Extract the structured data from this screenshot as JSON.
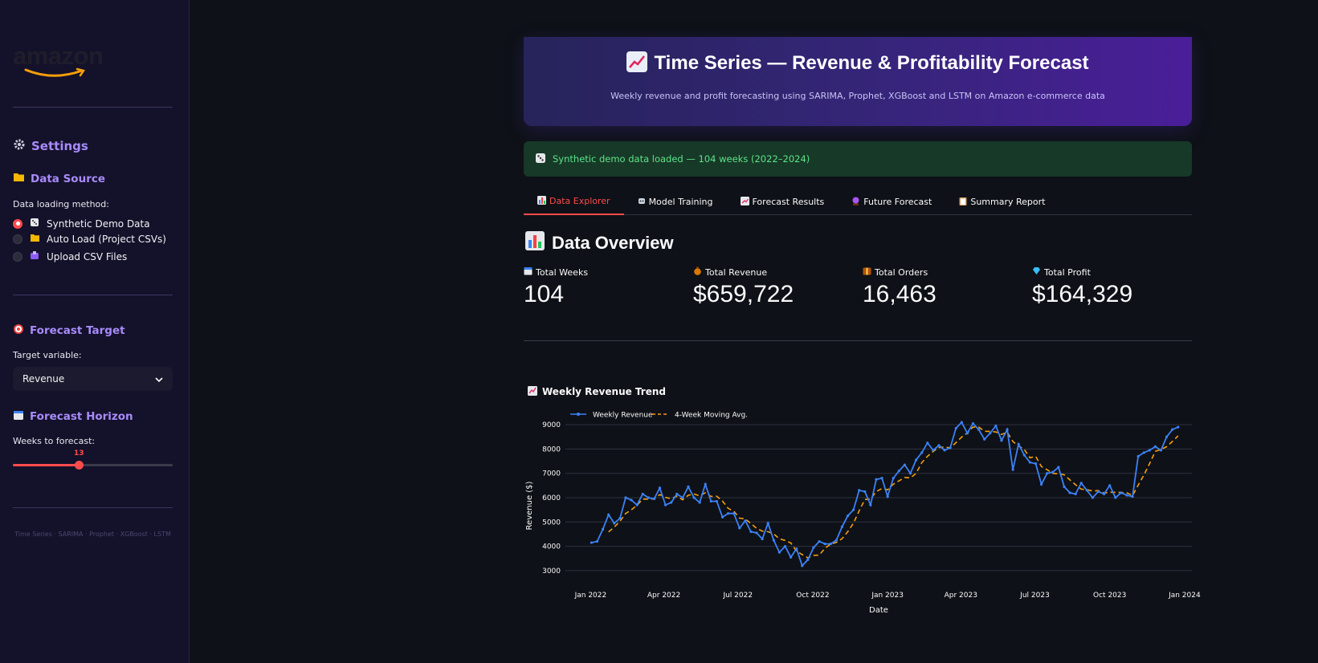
{
  "sidebar": {
    "logo_text": "amazon",
    "settings_heading": "Settings",
    "data_source_heading": "Data Source",
    "data_loading_label": "Data loading method:",
    "radio_options": [
      {
        "label": "Synthetic Demo Data",
        "icon": "dice-icon",
        "selected": true
      },
      {
        "label": "Auto Load (Project CSVs)",
        "icon": "folder-icon",
        "selected": false
      },
      {
        "label": "Upload CSV Files",
        "icon": "upload-icon",
        "selected": false
      }
    ],
    "forecast_target_heading": "Forecast Target",
    "target_variable_label": "Target variable:",
    "target_variable_value": "Revenue",
    "forecast_horizon_heading": "Forecast Horizon",
    "weeks_label": "Weeks to forecast:",
    "weeks_value": "13",
    "weeks_fraction": 0.41,
    "footer": "Time Series · SARIMA · Prophet · XGBoost · LSTM"
  },
  "hero": {
    "title": "Time Series — Revenue & Profitability Forecast",
    "subtitle": "Weekly revenue and profit forecasting using SARIMA, Prophet, XGBoost and LSTM on Amazon e-commerce data"
  },
  "alert": {
    "text": "Synthetic demo data loaded — 104 weeks (2022–2024)"
  },
  "tabs": [
    {
      "label": "Data Explorer",
      "active": true
    },
    {
      "label": "Model Training",
      "active": false
    },
    {
      "label": "Forecast Results",
      "active": false
    },
    {
      "label": "Future Forecast",
      "active": false
    },
    {
      "label": "Summary Report",
      "active": false
    }
  ],
  "overview": {
    "title": "Data Overview"
  },
  "metrics": [
    {
      "label": "Total Weeks",
      "value": "104"
    },
    {
      "label": "Total Revenue",
      "value": "$659,722"
    },
    {
      "label": "Total Orders",
      "value": "16,463"
    },
    {
      "label": "Total Profit",
      "value": "$164,329"
    }
  ],
  "colors": {
    "accent": "#ff4b4b",
    "purple": "#a78bfa",
    "revenue_line": "#3b82f6",
    "ma_line": "#f59e0b"
  },
  "chart_data": {
    "type": "line",
    "title": "Weekly Revenue Trend",
    "xlabel": "Date",
    "ylabel": "Revenue ($)",
    "ylim": [
      2700,
      9300
    ],
    "xlim": [
      "2021-12-01",
      "2024-01-10"
    ],
    "yticks": [
      3000,
      4000,
      5000,
      6000,
      7000,
      8000,
      9000
    ],
    "xticks": [
      {
        "date": "2022-01-01",
        "label": "Jan 2022"
      },
      {
        "date": "2022-04-01",
        "label": "Apr 2022"
      },
      {
        "date": "2022-07-01",
        "label": "Jul 2022"
      },
      {
        "date": "2022-10-01",
        "label": "Oct 2022"
      },
      {
        "date": "2023-01-01",
        "label": "Jan 2023"
      },
      {
        "date": "2023-04-01",
        "label": "Apr 2023"
      },
      {
        "date": "2023-07-01",
        "label": "Jul 2023"
      },
      {
        "date": "2023-10-01",
        "label": "Oct 2023"
      },
      {
        "date": "2024-01-01",
        "label": "Jan 2024"
      }
    ],
    "grid": true,
    "legend_position": "top-left",
    "x": [
      "2022-01-02",
      "2022-01-09",
      "2022-01-16",
      "2022-01-23",
      "2022-01-30",
      "2022-02-06",
      "2022-02-13",
      "2022-02-20",
      "2022-02-27",
      "2022-03-06",
      "2022-03-13",
      "2022-03-20",
      "2022-03-27",
      "2022-04-03",
      "2022-04-10",
      "2022-04-17",
      "2022-04-24",
      "2022-05-01",
      "2022-05-08",
      "2022-05-15",
      "2022-05-22",
      "2022-05-29",
      "2022-06-05",
      "2022-06-12",
      "2022-06-19",
      "2022-06-26",
      "2022-07-03",
      "2022-07-10",
      "2022-07-17",
      "2022-07-24",
      "2022-07-31",
      "2022-08-07",
      "2022-08-14",
      "2022-08-21",
      "2022-08-28",
      "2022-09-04",
      "2022-09-11",
      "2022-09-18",
      "2022-09-25",
      "2022-10-02",
      "2022-10-09",
      "2022-10-16",
      "2022-10-23",
      "2022-10-30",
      "2022-11-06",
      "2022-11-13",
      "2022-11-20",
      "2022-11-27",
      "2022-12-04",
      "2022-12-11",
      "2022-12-18",
      "2022-12-25",
      "2023-01-01",
      "2023-01-08",
      "2023-01-15",
      "2023-01-22",
      "2023-01-29",
      "2023-02-05",
      "2023-02-12",
      "2023-02-19",
      "2023-02-26",
      "2023-03-05",
      "2023-03-12",
      "2023-03-19",
      "2023-03-26",
      "2023-04-02",
      "2023-04-09",
      "2023-04-16",
      "2023-04-23",
      "2023-04-30",
      "2023-05-07",
      "2023-05-14",
      "2023-05-21",
      "2023-05-28",
      "2023-06-04",
      "2023-06-11",
      "2023-06-18",
      "2023-06-25",
      "2023-07-02",
      "2023-07-09",
      "2023-07-16",
      "2023-07-23",
      "2023-07-30",
      "2023-08-06",
      "2023-08-13",
      "2023-08-20",
      "2023-08-27",
      "2023-09-03",
      "2023-09-10",
      "2023-09-17",
      "2023-09-24",
      "2023-10-01",
      "2023-10-08",
      "2023-10-15",
      "2023-10-22",
      "2023-10-29",
      "2023-11-05",
      "2023-11-12",
      "2023-11-19",
      "2023-11-26",
      "2023-12-03",
      "2023-12-10",
      "2023-12-17",
      "2023-12-24"
    ],
    "series": [
      {
        "name": "Weekly Revenue",
        "style": "line+markers",
        "values": [
          4150,
          4200,
          4700,
          5300,
          4950,
          5150,
          6000,
          5900,
          5700,
          6150,
          6000,
          5950,
          6400,
          5700,
          5800,
          6150,
          6000,
          6450,
          6000,
          5800,
          6550,
          5850,
          5850,
          5200,
          5350,
          5350,
          4750,
          5050,
          4600,
          4550,
          4300,
          4950,
          4250,
          3750,
          4000,
          3550,
          3900,
          3200,
          3450,
          3950,
          4200,
          4100,
          4100,
          4250,
          4800,
          5250,
          5500,
          6300,
          6250,
          5700,
          6750,
          6800,
          6050,
          6800,
          7100,
          7350,
          7000,
          7550,
          7850,
          8250,
          7950,
          8150,
          7950,
          8050,
          8850,
          9100,
          8650,
          9050,
          8800,
          8400,
          8650,
          8950,
          8350,
          8800,
          7150,
          8200,
          7750,
          7450,
          7400,
          6550,
          7000,
          7050,
          7250,
          6450,
          6200,
          6150,
          6600,
          6300,
          6000,
          6250,
          6150,
          6500,
          6000,
          6200,
          6100,
          6050,
          7700,
          7850,
          7950,
          8100,
          7950,
          8500,
          8800,
          8900
        ]
      },
      {
        "name": "4-Week Moving Avg.",
        "style": "dashed",
        "values": [
          null,
          null,
          null,
          4590,
          4790,
          5030,
          5350,
          5500,
          5690,
          5940,
          5940,
          5950,
          6125,
          6010,
          5960,
          6060,
          5910,
          6100,
          6150,
          6075,
          6200,
          6050,
          6060,
          5860,
          5560,
          5440,
          5160,
          5125,
          4930,
          4740,
          4625,
          4600,
          4510,
          4310,
          4240,
          4140,
          3800,
          3660,
          3525,
          3625,
          3640,
          3920,
          4090,
          4160,
          4310,
          4600,
          4950,
          5460,
          5925,
          5940,
          6250,
          6375,
          6325,
          6550,
          6690,
          6830,
          6810,
          7000,
          7440,
          7700,
          7900,
          8060,
          8090,
          8040,
          8260,
          8490,
          8660,
          8900,
          8900,
          8730,
          8725,
          8700,
          8600,
          8690,
          8310,
          8130,
          7980,
          7640,
          7700,
          7280,
          7150,
          7000,
          6980,
          6940,
          6730,
          6530,
          6350,
          6330,
          6270,
          6290,
          6190,
          6220,
          6220,
          6210,
          6200,
          6090,
          6510,
          6930,
          7400,
          7900,
          7980,
          8100,
          8310,
          8540
        ]
      }
    ]
  }
}
